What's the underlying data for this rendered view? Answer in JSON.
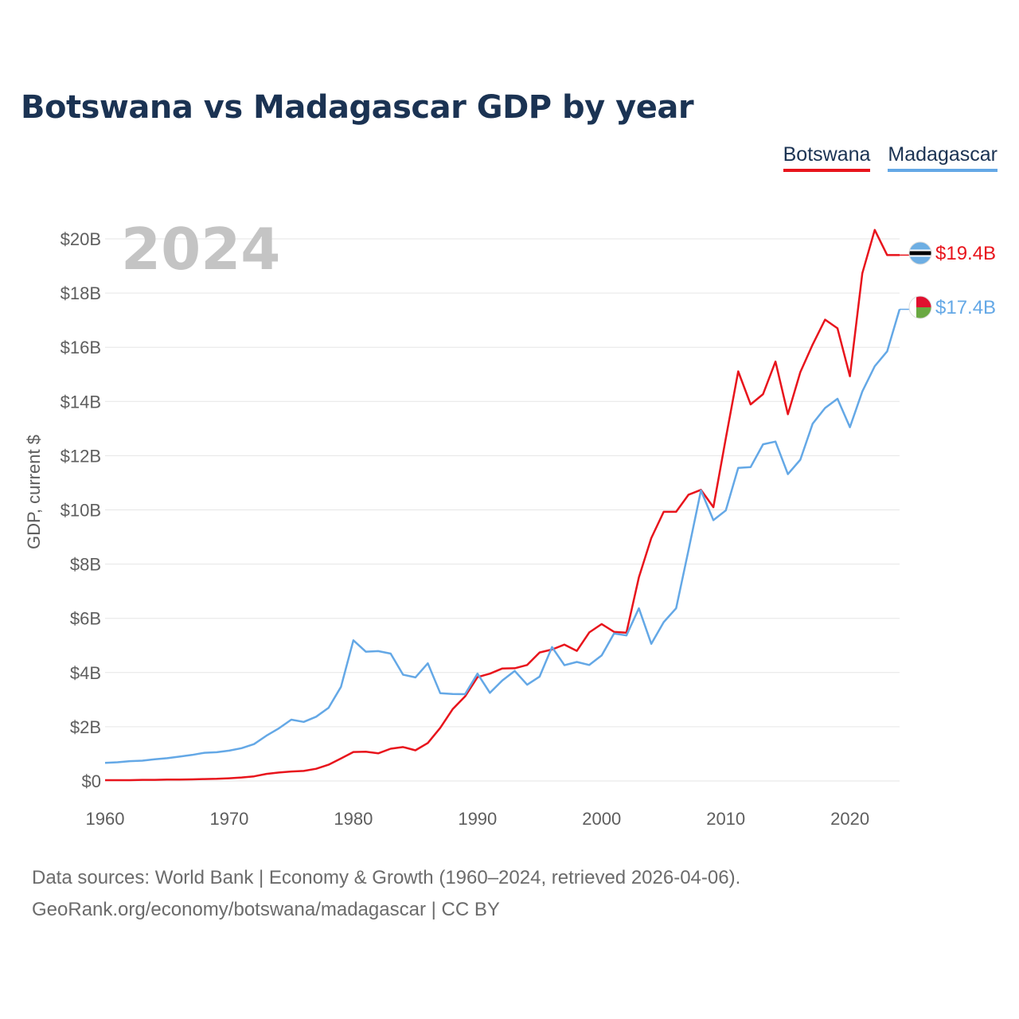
{
  "title": "Botswana vs Madagascar GDP by year",
  "sources": {
    "line1": "Data sources: World Bank | Economy & Growth (1960–2024, retrieved 2026-04-06).",
    "line2": "GeoRank.org/economy/botswana/madagascar | CC BY"
  },
  "colors": {
    "botswana": "#e8141c",
    "madagascar": "#64a8e6",
    "title": "#1b3353",
    "year": "#c4c4c4",
    "grid": "#e6e6e6"
  },
  "chart_data": {
    "type": "line",
    "title": "Botswana vs Madagascar GDP by year",
    "xlabel": "",
    "ylabel": "GDP, current $",
    "year_label": "2024",
    "xlim": [
      1960,
      2024
    ],
    "ylim": [
      0,
      20
    ],
    "x_ticks": [
      1960,
      1970,
      1980,
      1990,
      2000,
      2010,
      2020
    ],
    "y_ticks": [
      {
        "value": 0,
        "label": "$0"
      },
      {
        "value": 2,
        "label": "$2B"
      },
      {
        "value": 4,
        "label": "$4B"
      },
      {
        "value": 6,
        "label": "$6B"
      },
      {
        "value": 8,
        "label": "$8B"
      },
      {
        "value": 10,
        "label": "$10B"
      },
      {
        "value": 12,
        "label": "$12B"
      },
      {
        "value": 14,
        "label": "$14B"
      },
      {
        "value": 16,
        "label": "$16B"
      },
      {
        "value": 18,
        "label": "$18B"
      },
      {
        "value": 20,
        "label": "$20B"
      }
    ],
    "x": [
      1960,
      1961,
      1962,
      1963,
      1964,
      1965,
      1966,
      1967,
      1968,
      1969,
      1970,
      1971,
      1972,
      1973,
      1974,
      1975,
      1976,
      1977,
      1978,
      1979,
      1980,
      1981,
      1982,
      1983,
      1984,
      1985,
      1986,
      1987,
      1988,
      1989,
      1990,
      1991,
      1992,
      1993,
      1994,
      1995,
      1996,
      1997,
      1998,
      1999,
      2000,
      2001,
      2002,
      2003,
      2004,
      2005,
      2006,
      2007,
      2008,
      2009,
      2010,
      2011,
      2012,
      2013,
      2014,
      2015,
      2016,
      2017,
      2018,
      2019,
      2020,
      2021,
      2022,
      2023,
      2024
    ],
    "series": [
      {
        "name": "Botswana",
        "color": "#e8141c",
        "end_label": "$19.4B",
        "values": [
          0.03,
          0.03,
          0.03,
          0.04,
          0.04,
          0.05,
          0.05,
          0.06,
          0.07,
          0.08,
          0.1,
          0.13,
          0.17,
          0.26,
          0.31,
          0.35,
          0.37,
          0.45,
          0.6,
          0.83,
          1.07,
          1.08,
          1.02,
          1.19,
          1.25,
          1.13,
          1.4,
          1.96,
          2.65,
          3.12,
          3.83,
          3.96,
          4.15,
          4.16,
          4.28,
          4.74,
          4.85,
          5.03,
          4.8,
          5.48,
          5.79,
          5.5,
          5.47,
          7.51,
          8.96,
          9.93,
          9.93,
          10.56,
          10.74,
          10.1,
          12.64,
          15.11,
          13.89,
          14.27,
          15.47,
          13.53,
          15.08,
          16.1,
          17.02,
          16.7,
          14.93,
          18.73,
          20.33,
          19.4,
          19.4
        ]
      },
      {
        "name": "Madagascar",
        "color": "#64a8e6",
        "end_label": "$17.4B",
        "values": [
          0.67,
          0.69,
          0.73,
          0.75,
          0.8,
          0.84,
          0.9,
          0.96,
          1.04,
          1.06,
          1.12,
          1.21,
          1.36,
          1.67,
          1.94,
          2.26,
          2.18,
          2.37,
          2.7,
          3.47,
          5.19,
          4.77,
          4.79,
          4.7,
          3.92,
          3.82,
          4.34,
          3.24,
          3.21,
          3.2,
          3.96,
          3.25,
          3.71,
          4.06,
          3.55,
          3.85,
          4.94,
          4.27,
          4.39,
          4.28,
          4.63,
          5.44,
          5.37,
          6.37,
          5.06,
          5.86,
          6.37,
          8.52,
          10.72,
          9.62,
          9.98,
          11.55,
          11.58,
          12.42,
          12.52,
          11.32,
          11.85,
          13.18,
          13.76,
          14.1,
          13.05,
          14.37,
          15.3,
          15.85,
          17.4
        ]
      }
    ]
  }
}
